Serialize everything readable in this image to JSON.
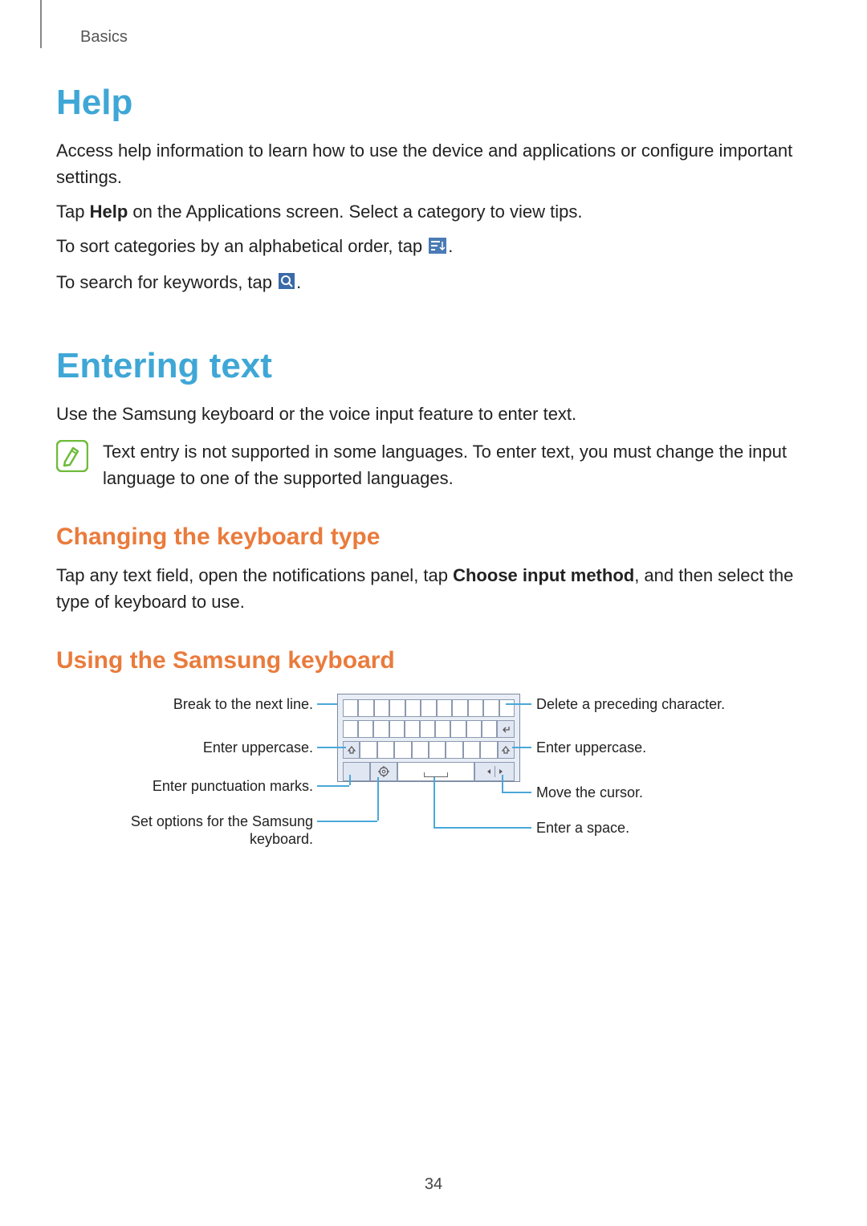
{
  "header": {
    "section": "Basics"
  },
  "help": {
    "title": "Help",
    "p1": "Access help information to learn how to use the device and applications or configure important settings.",
    "p2_pre": "Tap ",
    "p2_bold": "Help",
    "p2_post": " on the Applications screen. Select a category to view tips.",
    "p3_pre": "To sort categories by an alphabetical order, tap ",
    "p3_post": ".",
    "p4_pre": "To search for keywords, tap ",
    "p4_post": "."
  },
  "entering": {
    "title": "Entering text",
    "p1": "Use the Samsung keyboard or the voice input feature to enter text.",
    "note": "Text entry is not supported in some languages. To enter text, you must change the input language to one of the supported languages."
  },
  "changing": {
    "title": "Changing the keyboard type",
    "p1_pre": "Tap any text field, open the notifications panel, tap ",
    "p1_bold": "Choose input method",
    "p1_post": ", and then select the type of keyboard to use."
  },
  "using": {
    "title": "Using the Samsung keyboard",
    "callouts": {
      "left": {
        "l1": "Break to the next line.",
        "l2": "Enter uppercase.",
        "l3": "Enter punctuation marks.",
        "l4a": "Set options for the Samsung",
        "l4b": "keyboard."
      },
      "right": {
        "r1": "Delete a preceding character.",
        "r2": "Enter uppercase.",
        "r3": "Move the cursor.",
        "r4": "Enter a space."
      }
    }
  },
  "page_number": "34",
  "icons": {
    "sort_icon_bg": "#4a7bb5",
    "search_icon_bg": "#3a6aa8",
    "note_icon_border": "#6fbb3b",
    "note_icon_fill": "#ffffff",
    "callout_line_color": "#4aa8d8"
  },
  "colors": {
    "h1": "#3fa7d6",
    "h2": "#ea7b3c",
    "text": "#222222",
    "header_text": "#555555",
    "kb_bg": "#e9eef6",
    "kb_border": "#8c99b0"
  },
  "keyboard": {
    "row1_keys": 11,
    "row2_keys": 10,
    "row3_mid_keys": 8
  }
}
